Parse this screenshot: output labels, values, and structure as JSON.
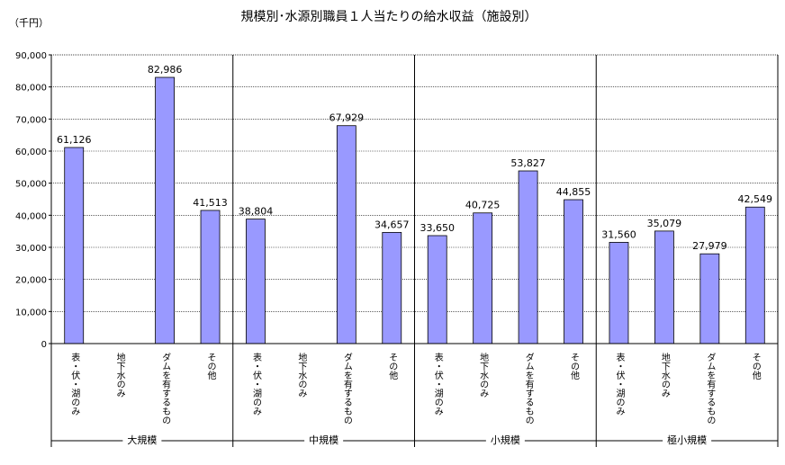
{
  "chart_data": {
    "type": "bar",
    "title": "規模別･水源別職員１人当たりの給水収益（施設別）",
    "unit": "（千円）",
    "ylim": [
      0,
      90000
    ],
    "yticks": [
      "0",
      "10,000",
      "20,000",
      "30,000",
      "40,000",
      "50,000",
      "60,000",
      "70,000",
      "80,000",
      "90,000"
    ],
    "grid": true,
    "bar_color": "#9999ff",
    "groups": [
      {
        "name": "大規模",
        "categories": [
          "表・伏・湖のみ",
          "地下水のみ",
          "ダムを有するもの",
          "その他"
        ],
        "values": [
          61126,
          null,
          82986,
          41513
        ],
        "labels": [
          "61,126",
          "",
          "82,986",
          "41,513"
        ]
      },
      {
        "name": "中規模",
        "categories": [
          "表・伏・湖のみ",
          "地下水のみ",
          "ダムを有するもの",
          "その他"
        ],
        "values": [
          38804,
          null,
          67929,
          34657
        ],
        "labels": [
          "38,804",
          "",
          "67,929",
          "34,657"
        ]
      },
      {
        "name": "小規模",
        "categories": [
          "表・伏・湖のみ",
          "地下水のみ",
          "ダムを有するもの",
          "その他"
        ],
        "values": [
          33650,
          40725,
          53827,
          44855
        ],
        "labels": [
          "33,650",
          "40,725",
          "53,827",
          "44,855"
        ]
      },
      {
        "name": "極小規模",
        "categories": [
          "表・伏・湖のみ",
          "地下水のみ",
          "ダムを有するもの",
          "その他"
        ],
        "values": [
          31560,
          35079,
          27979,
          42549
        ],
        "labels": [
          "31,560",
          "35,079",
          "27,979",
          "42,549"
        ]
      }
    ]
  }
}
